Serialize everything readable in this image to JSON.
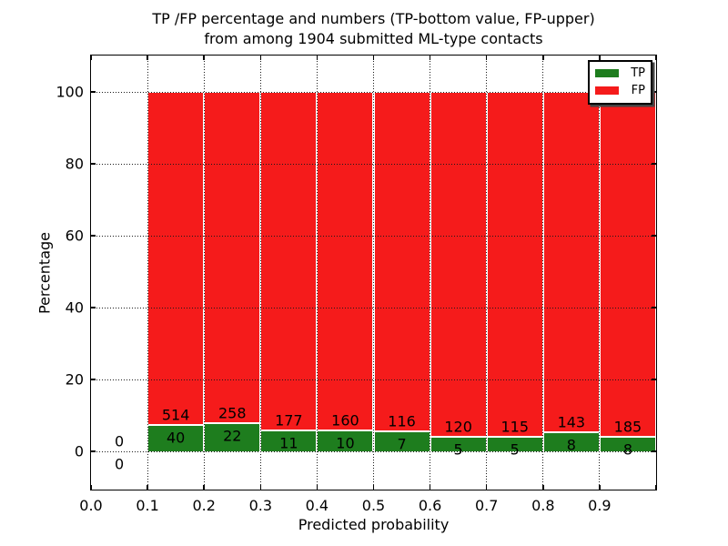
{
  "chart_data": {
    "type": "bar",
    "stacked": true,
    "title_line1": "TP /FP percentage and numbers (TP-bottom value, FP-upper)",
    "title_line2": "from among 1904 submitted ML-type contacts",
    "xlabel": "Predicted probability",
    "ylabel": "Percentage",
    "total_contacts": 1904,
    "bar_display": "each bin stacked to 100%, segment heights = percentage of bin total; annotations show raw counts (TP below boundary, FP above boundary)",
    "bins": [
      {
        "range": "0.0-0.1",
        "tp": 0,
        "fp": 0
      },
      {
        "range": "0.1-0.2",
        "tp": 40,
        "fp": 514
      },
      {
        "range": "0.2-0.3",
        "tp": 22,
        "fp": 258
      },
      {
        "range": "0.3-0.4",
        "tp": 11,
        "fp": 177
      },
      {
        "range": "0.4-0.5",
        "tp": 10,
        "fp": 160
      },
      {
        "range": "0.5-0.6",
        "tp": 7,
        "fp": 116
      },
      {
        "range": "0.6-0.7",
        "tp": 5,
        "fp": 120
      },
      {
        "range": "0.7-0.8",
        "tp": 5,
        "fp": 115
      },
      {
        "range": "0.8-0.9",
        "tp": 8,
        "fp": 143
      },
      {
        "range": "0.9-1.0",
        "tp": 8,
        "fp": 185
      }
    ],
    "x_ticks": [
      "0.0",
      "0.1",
      "0.2",
      "0.3",
      "0.4",
      "0.5",
      "0.6",
      "0.7",
      "0.8",
      "0.9"
    ],
    "y_ticks": [
      0,
      20,
      40,
      60,
      80,
      100
    ],
    "xlim": [
      0.0,
      1.0
    ],
    "ylim": [
      -10.6,
      110.1
    ],
    "grid": "dotted, drawn over bars",
    "legend": {
      "position": "upper right",
      "entries": [
        {
          "label": "TP",
          "color": "#1e7d1e"
        },
        {
          "label": "FP",
          "color": "#f51b1b"
        }
      ]
    }
  },
  "colors": {
    "tp": "#1e7d1e",
    "fp": "#f51b1b",
    "grid": "#1a1a1a",
    "background": "#ffffff",
    "bar_edge": "#ffffff"
  }
}
